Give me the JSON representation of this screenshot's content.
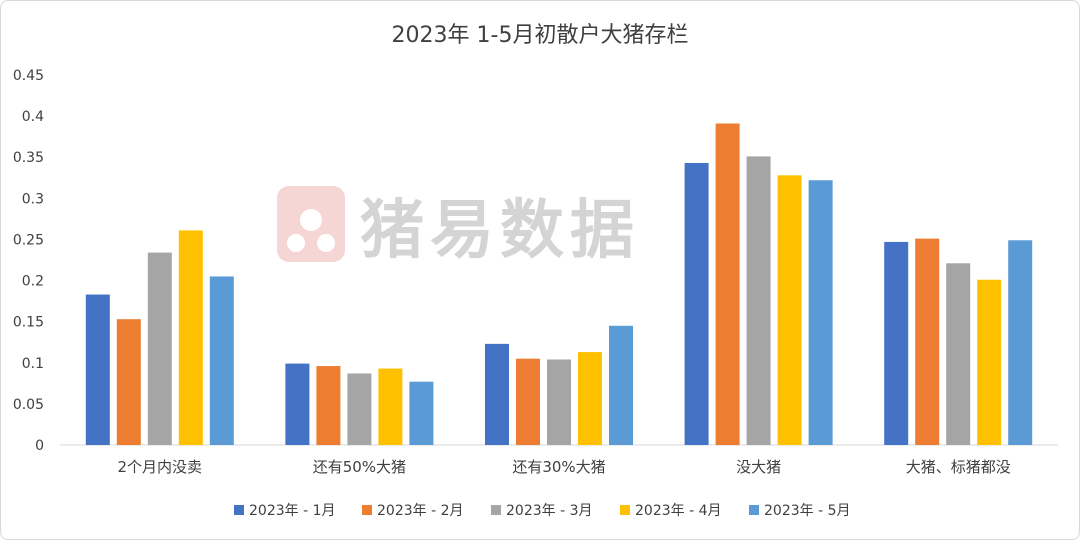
{
  "chart_data": {
    "type": "bar",
    "title": "2023年 1-5月初散户大猪存栏",
    "categories": [
      "2个月内没卖",
      "还有50%大猪",
      "还有30%大猪",
      "没大猪",
      "大猪、标猪都没"
    ],
    "series": [
      {
        "name": "2023年 - 1月",
        "color": "#4472C4",
        "values": [
          0.183,
          0.099,
          0.123,
          0.343,
          0.247
        ]
      },
      {
        "name": "2023年 - 2月",
        "color": "#ED7D31",
        "values": [
          0.153,
          0.096,
          0.105,
          0.391,
          0.251
        ]
      },
      {
        "name": "2023年 - 3月",
        "color": "#A5A5A5",
        "values": [
          0.234,
          0.087,
          0.104,
          0.351,
          0.221
        ]
      },
      {
        "name": "2023年 - 4月",
        "color": "#FFC000",
        "values": [
          0.261,
          0.093,
          0.113,
          0.328,
          0.201
        ]
      },
      {
        "name": "2023年 - 5月",
        "color": "#5B9BD5",
        "values": [
          0.205,
          0.077,
          0.145,
          0.322,
          0.249
        ]
      }
    ],
    "yticks": [
      "0",
      "0.05",
      "0.1",
      "0.15",
      "0.2",
      "0.25",
      "0.3",
      "0.35",
      "0.4",
      "0.45"
    ],
    "ylim": [
      0,
      0.45
    ],
    "gridlines": false,
    "legend_position": "bottom"
  },
  "watermark": {
    "text": "猪易数据",
    "color": "#E8A3A3"
  }
}
